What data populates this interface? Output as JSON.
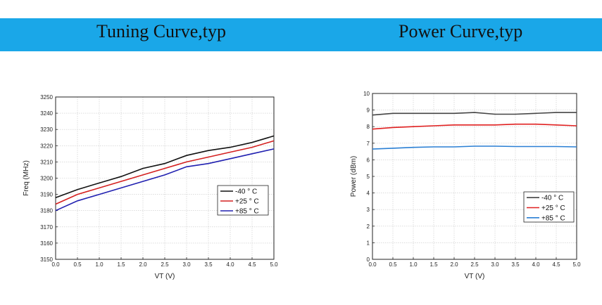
{
  "header": {
    "left_title": "Tuning Curve,typ",
    "right_title": "Power Curve,typ",
    "color": "#1aa7e8"
  },
  "chart_data": [
    {
      "type": "line",
      "xlabel": "VT (V)",
      "ylabel": "Freq (MHz)",
      "xlim": [
        0,
        5
      ],
      "ylim": [
        3150,
        3250
      ],
      "xticks": [
        "0.0",
        "0.5",
        "1.0",
        "1.5",
        "2.0",
        "2.5",
        "3.0",
        "3.5",
        "4.0",
        "4.5",
        "5.0"
      ],
      "yticks": [
        "3150",
        "3160",
        "3170",
        "3180",
        "3190",
        "3200",
        "3210",
        "3220",
        "3230",
        "3240",
        "3250"
      ],
      "grid": true,
      "legend_position": "bottom-right",
      "x": [
        0,
        0.5,
        1.0,
        1.5,
        2.0,
        2.5,
        3.0,
        3.5,
        4.0,
        4.5,
        5.0
      ],
      "series": [
        {
          "name": "-40 ° C",
          "color": "#111111",
          "values": [
            3188,
            3193,
            3197,
            3201,
            3206,
            3209,
            3214,
            3217,
            3219,
            3222,
            3226
          ]
        },
        {
          "name": "+25 ° C",
          "color": "#d42020",
          "values": [
            3184,
            3190,
            3194,
            3198,
            3202,
            3206,
            3210,
            3213,
            3216,
            3219,
            3223
          ]
        },
        {
          "name": "+85 ° C",
          "color": "#2020b0",
          "values": [
            3180,
            3186,
            3190,
            3194,
            3198,
            3202,
            3207,
            3209,
            3212,
            3215,
            3218
          ]
        }
      ]
    },
    {
      "type": "line",
      "xlabel": "VT (V)",
      "ylabel": "Power (dBm)",
      "xlim": [
        0,
        5
      ],
      "ylim": [
        0,
        10
      ],
      "xticks": [
        "0.0",
        "0.5",
        "1.0",
        "1.5",
        "2.0",
        "2.5",
        "3.0",
        "3.5",
        "4.0",
        "4.5",
        "5.0"
      ],
      "yticks": [
        "0",
        "1",
        "2",
        "3",
        "4",
        "5",
        "6",
        "7",
        "8",
        "9",
        "10"
      ],
      "grid": true,
      "legend_position": "bottom-right",
      "x": [
        0,
        0.5,
        1.0,
        1.5,
        2.0,
        2.5,
        3.0,
        3.5,
        4.0,
        4.5,
        5.0
      ],
      "series": [
        {
          "name": "-40 ° C",
          "color": "#444444",
          "values": [
            8.7,
            8.8,
            8.8,
            8.8,
            8.8,
            8.85,
            8.75,
            8.75,
            8.8,
            8.85,
            8.85
          ]
        },
        {
          "name": "+25 ° C",
          "color": "#e02020",
          "values": [
            7.85,
            7.95,
            8.0,
            8.05,
            8.1,
            8.1,
            8.1,
            8.15,
            8.15,
            8.1,
            8.05
          ]
        },
        {
          "name": "+85 ° C",
          "color": "#2a7fd4",
          "values": [
            6.65,
            6.7,
            6.75,
            6.78,
            6.78,
            6.82,
            6.82,
            6.8,
            6.8,
            6.8,
            6.78
          ]
        }
      ]
    }
  ]
}
